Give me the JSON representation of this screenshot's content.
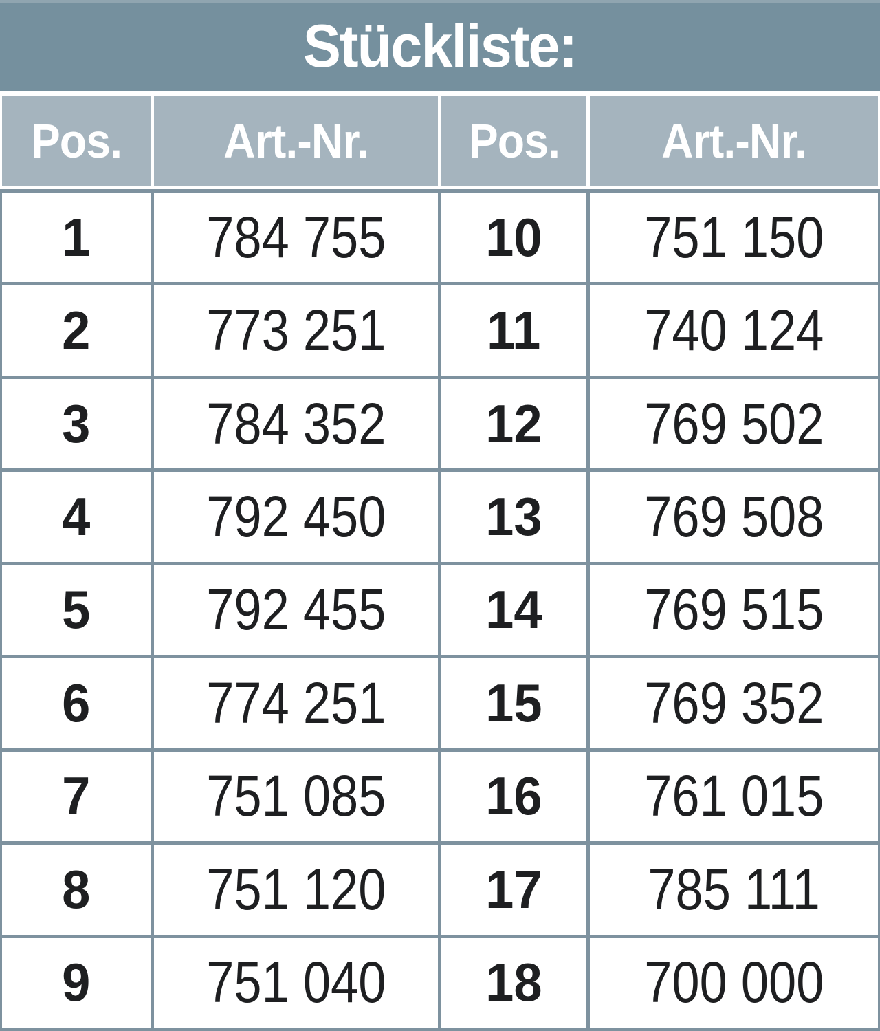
{
  "title": "Stückliste:",
  "columns": [
    "Pos.",
    "Art.-Nr.",
    "Pos.",
    "Art.-Nr."
  ],
  "rows": [
    {
      "pos_left": "1",
      "art_left": "784 755",
      "pos_right": "10",
      "art_right": "751 150"
    },
    {
      "pos_left": "2",
      "art_left": "773 251",
      "pos_right": "11",
      "art_right": "740 124"
    },
    {
      "pos_left": "3",
      "art_left": "784 352",
      "pos_right": "12",
      "art_right": "769 502"
    },
    {
      "pos_left": "4",
      "art_left": "792 450",
      "pos_right": "13",
      "art_right": "769 508"
    },
    {
      "pos_left": "5",
      "art_left": "792 455",
      "pos_right": "14",
      "art_right": "769 515"
    },
    {
      "pos_left": "6",
      "art_left": "774 251",
      "pos_right": "15",
      "art_right": "769 352"
    },
    {
      "pos_left": "7",
      "art_left": "751 085",
      "pos_right": "16",
      "art_right": "761 015"
    },
    {
      "pos_left": "8",
      "art_left": "751 120",
      "pos_right": "17",
      "art_right": "785 111"
    },
    {
      "pos_left": "9",
      "art_left": "751 040",
      "pos_right": "18",
      "art_right": "700 000"
    }
  ],
  "colors": {
    "title_bg": "#75909e",
    "header_bg": "#a5b4be",
    "divider": "#7e929f",
    "text_dark": "#1e1f21",
    "text_light": "#ffffff"
  }
}
